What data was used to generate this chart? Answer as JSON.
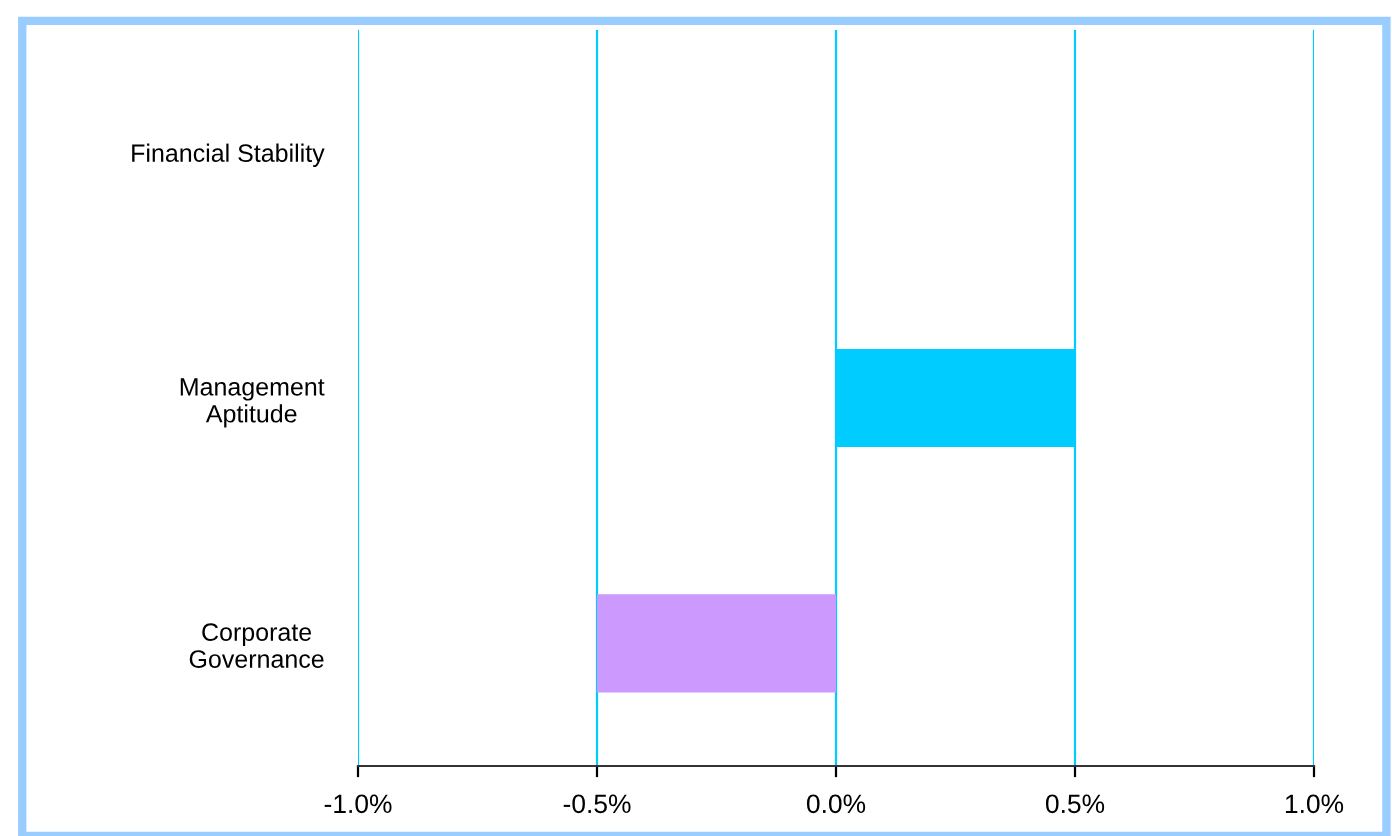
{
  "chart_data": {
    "type": "bar",
    "orientation": "horizontal",
    "categories": [
      "Financial Stability",
      "Management\nAptitude",
      "Corporate\nGovernance"
    ],
    "values": [
      0,
      0.5,
      -0.5
    ],
    "colors": [
      "#00ccff",
      "#00ccff",
      "#cc99ff"
    ],
    "xlim": [
      -1.0,
      1.0
    ],
    "xticks": [
      {
        "value": -1.0,
        "label": "-1.0%"
      },
      {
        "value": -0.5,
        "label": "-0.5%"
      },
      {
        "value": 0.0,
        "label": "0.0%"
      },
      {
        "value": 0.5,
        "label": "0.5%"
      },
      {
        "value": 1.0,
        "label": "1.0%"
      }
    ],
    "grid": "x",
    "legend": false
  }
}
